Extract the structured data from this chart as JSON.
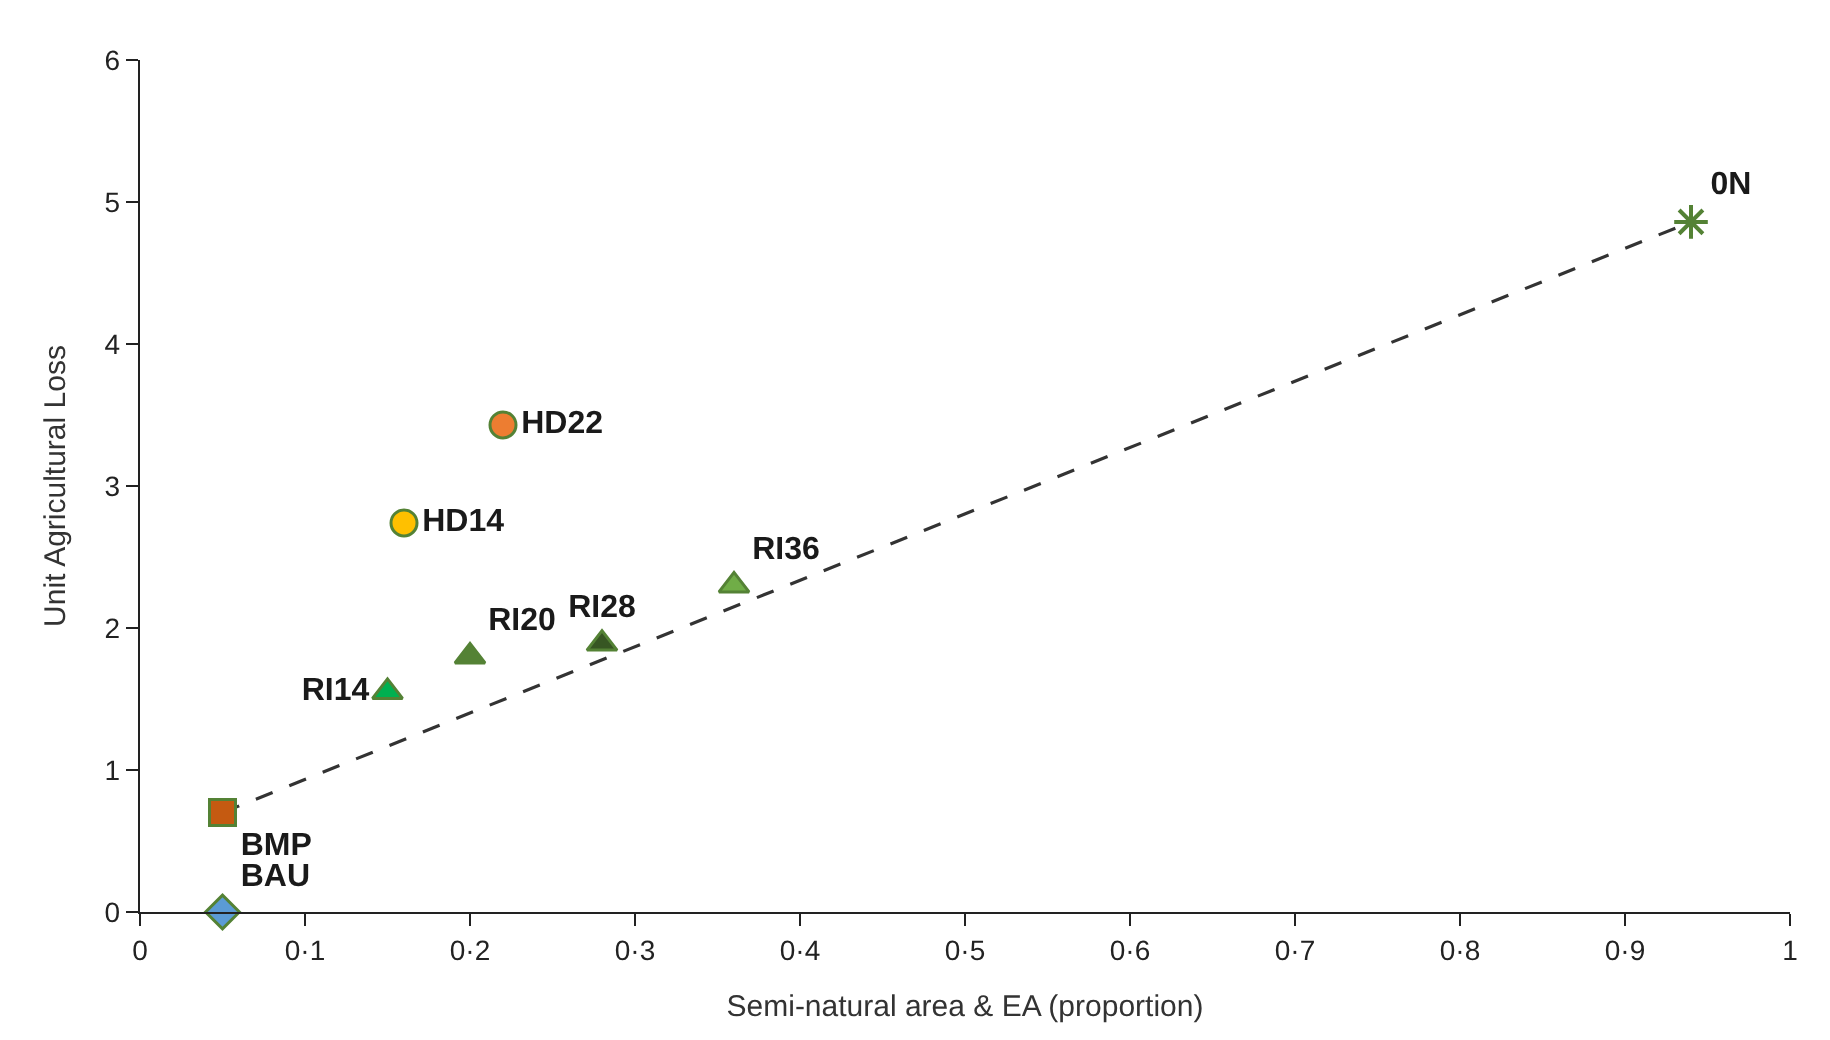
{
  "chart_data": {
    "type": "scatter",
    "xlabel": "Semi-natural area & EA (proportion)",
    "ylabel": "Unit Agricultural Loss",
    "xlim": [
      0,
      1
    ],
    "ylim": [
      0,
      6
    ],
    "xticks": [
      0,
      {
        "value": 0.1,
        "label": "0·1"
      },
      {
        "value": 0.2,
        "label": "0·2"
      },
      {
        "value": 0.3,
        "label": "0·3"
      },
      {
        "value": 0.4,
        "label": "0·4"
      },
      {
        "value": 0.5,
        "label": "0·5"
      },
      {
        "value": 0.6,
        "label": "0·6"
      },
      {
        "value": 0.7,
        "label": "0·7"
      },
      {
        "value": 0.8,
        "label": "0·8"
      },
      {
        "value": 0.9,
        "label": "0·9"
      },
      1
    ],
    "yticks": [
      0,
      1,
      2,
      3,
      4,
      5,
      6
    ],
    "series": [
      {
        "type": "line",
        "color": "#333333",
        "line_style": "dashed",
        "marker": "none",
        "x": [
          0.05,
          0.94
        ],
        "values": [
          0.7,
          4.86
        ]
      },
      {
        "name": "BAU",
        "color": "#5b9bd5",
        "marker": "diamond",
        "x": [
          0.05
        ],
        "values": [
          0
        ]
      },
      {
        "name": "BMP",
        "color": "#c55a11",
        "marker": "square",
        "x": [
          0.05
        ],
        "values": [
          0.7
        ]
      },
      {
        "name": "RI14",
        "color": "#00b050",
        "marker": "triangle",
        "x": [
          0.15
        ],
        "values": [
          1.55
        ]
      },
      {
        "name": "RI20",
        "color": "#548235",
        "marker": "triangle",
        "x": [
          0.2
        ],
        "values": [
          1.8
        ]
      },
      {
        "name": "RI28",
        "color": "#375623",
        "marker": "triangle",
        "x": [
          0.28
        ],
        "values": [
          1.89
        ]
      },
      {
        "name": "RI36",
        "color": "#70ad47",
        "marker": "triangle",
        "x": [
          0.36
        ],
        "values": [
          2.3
        ]
      },
      {
        "name": "HD14",
        "color": "#ffc000",
        "marker": "circle",
        "x": [
          0.16
        ],
        "values": [
          2.74
        ]
      },
      {
        "name": "HD22",
        "color": "#ed7d31",
        "marker": "circle",
        "x": [
          0.22
        ],
        "values": [
          3.43
        ]
      },
      {
        "name": "0N",
        "color": "#548235",
        "marker": "cross",
        "x": [
          0.94
        ],
        "values": [
          4.86
        ]
      }
    ]
  }
}
